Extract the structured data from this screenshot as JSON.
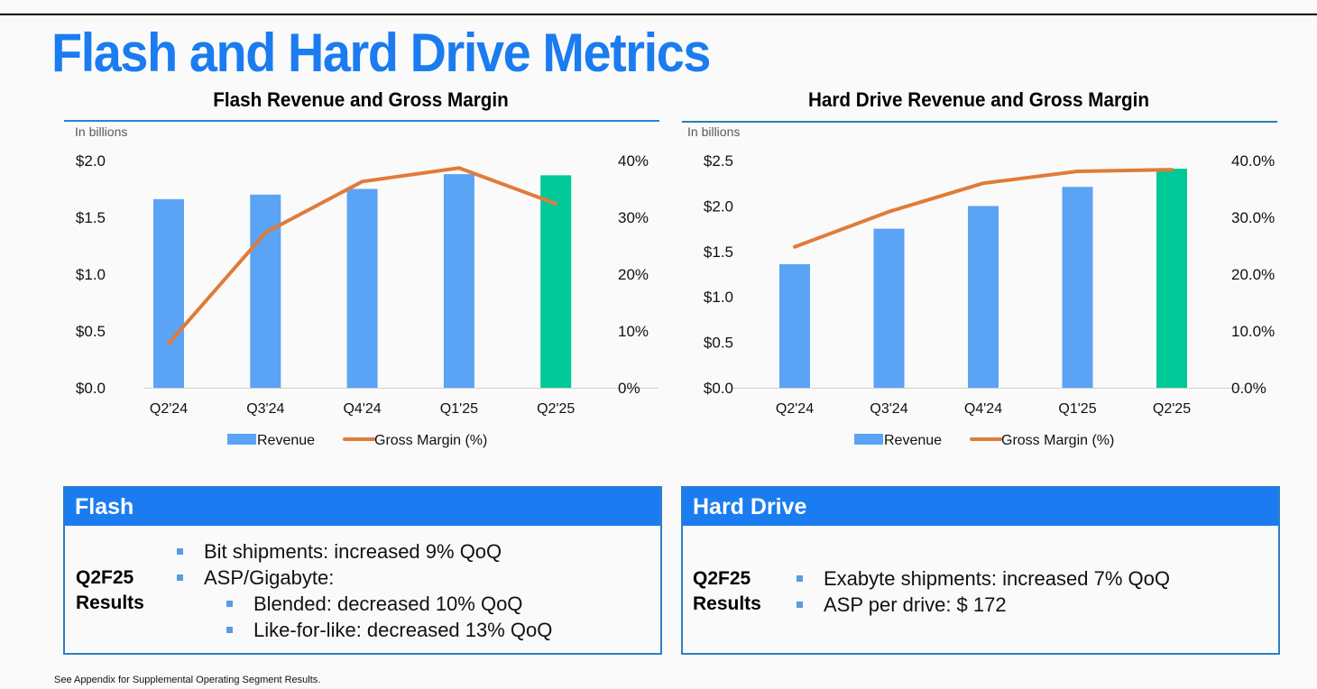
{
  "page": {
    "title": "Flash and Hard Drive Metrics",
    "footnote": "See Appendix for Supplemental Operating Segment Results."
  },
  "colors": {
    "title_blue": "#1a7cf0",
    "revenue_bar": "#5ba3f5",
    "highlight_bar": "#00c897",
    "gross_margin_line": "#e07b39",
    "box_header": "#1a7cf0"
  },
  "chart_data": [
    {
      "type": "bar",
      "title": "Flash Revenue and Gross Margin",
      "units_note": "In billions",
      "categories": [
        "Q2'24",
        "Q3'24",
        "Q4'24",
        "Q1'25",
        "Q2'25"
      ],
      "series": [
        {
          "name": "Revenue",
          "axis": "left",
          "kind": "bar",
          "values": [
            1.66,
            1.7,
            1.75,
            1.88,
            1.87
          ],
          "highlight_last": true
        },
        {
          "name": "Gross Margin (%)",
          "axis": "right",
          "kind": "line",
          "values": [
            7.8,
            27.3,
            36.3,
            38.7,
            32.4
          ]
        }
      ],
      "ylim_left": [
        0,
        2.0
      ],
      "ylim_right": [
        0,
        40
      ],
      "left_ticks": [
        "$0.0",
        "$0.5",
        "$1.0",
        "$1.5",
        "$2.0"
      ],
      "right_ticks": [
        "0%",
        "10%",
        "20%",
        "30%",
        "40%"
      ],
      "legend": [
        "Revenue",
        "Gross Margin (%)"
      ],
      "legend_position": "bottom",
      "grid": false
    },
    {
      "type": "bar",
      "title": "Hard Drive Revenue and Gross Margin",
      "units_note": "In billions",
      "categories": [
        "Q2'24",
        "Q3'24",
        "Q4'24",
        "Q1'25",
        "Q2'25"
      ],
      "series": [
        {
          "name": "Revenue",
          "axis": "left",
          "kind": "bar",
          "values": [
            1.36,
            1.75,
            2.0,
            2.21,
            2.41
          ],
          "highlight_last": true
        },
        {
          "name": "Gross Margin (%)",
          "axis": "right",
          "kind": "line",
          "values": [
            24.8,
            31.0,
            36.0,
            38.1,
            38.4
          ]
        }
      ],
      "ylim_left": [
        0,
        2.5
      ],
      "ylim_right": [
        0,
        40
      ],
      "left_ticks": [
        "$0.0",
        "$0.5",
        "$1.0",
        "$1.5",
        "$2.0",
        "$2.5"
      ],
      "right_ticks": [
        "0.0%",
        "10.0%",
        "20.0%",
        "30.0%",
        "40.0%"
      ],
      "legend": [
        "Revenue",
        "Gross Margin (%)"
      ],
      "legend_position": "bottom",
      "grid": false
    }
  ],
  "boxes": {
    "flash": {
      "header": "Flash",
      "results_label_1": "Q2F25",
      "results_label_2": "Results",
      "bullets": [
        "Bit shipments: increased 9% QoQ",
        "ASP/Gigabyte:",
        "Blended: decreased 10% QoQ",
        "Like-for-like: decreased 13% QoQ"
      ]
    },
    "hdd": {
      "header": "Hard Drive",
      "results_label_1": "Q2F25",
      "results_label_2": "Results",
      "bullets": [
        "Exabyte shipments: increased 7% QoQ",
        "ASP per drive: $ 172"
      ]
    }
  }
}
